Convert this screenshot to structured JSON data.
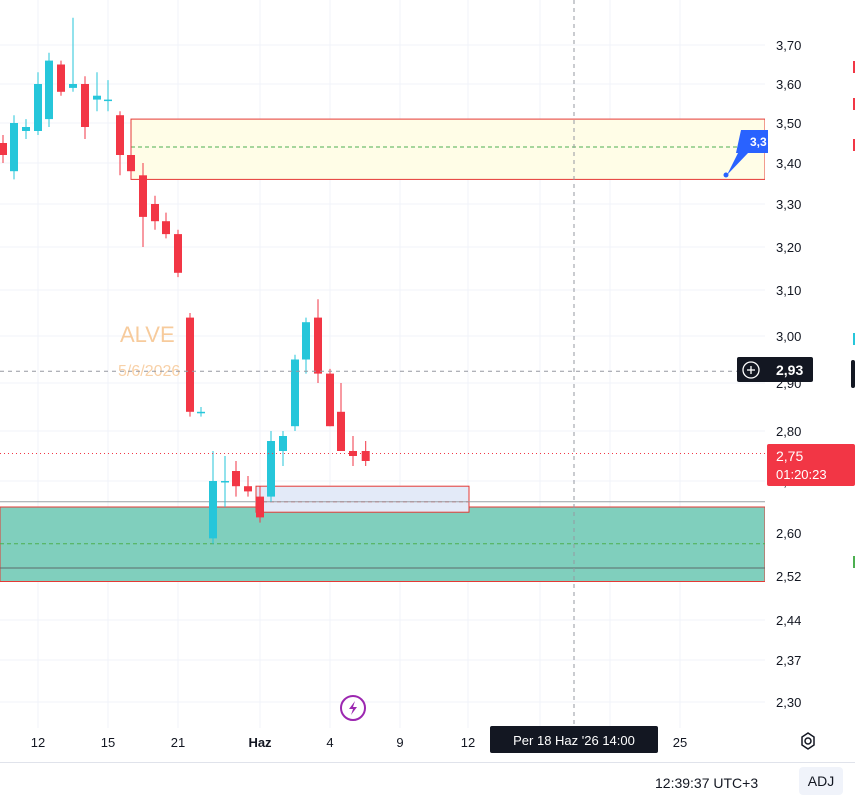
{
  "chart_data": {
    "type": "candlestick",
    "symbol_watermark": "ALVE",
    "date_watermark": "5/6/2026",
    "price_axis_ticks": [
      "3,70",
      "3,60",
      "3,50",
      "3,40",
      "3,30",
      "3,20",
      "3,10",
      "3,00",
      "2,90",
      "2,80",
      "2,70",
      "2,60",
      "2,52",
      "2,44",
      "2,37",
      "2,30"
    ],
    "time_axis_ticks": [
      "12",
      "15",
      "21",
      "Haz",
      "4",
      "9",
      "12",
      "25"
    ],
    "crosshair_date_label": "Per 18 Haz '26   14:00",
    "crosshair_price_label": "2,93",
    "last_price_label": "2,75",
    "countdown_label": "01:20:23",
    "alert_label": "3,3",
    "candles": [
      {
        "o": 3.45,
        "h": 3.47,
        "l": 3.4,
        "c": 3.42
      },
      {
        "o": 3.38,
        "h": 3.52,
        "l": 3.36,
        "c": 3.5
      },
      {
        "o": 3.48,
        "h": 3.51,
        "l": 3.46,
        "c": 3.49
      },
      {
        "o": 3.48,
        "h": 3.63,
        "l": 3.47,
        "c": 3.6
      },
      {
        "o": 3.51,
        "h": 3.68,
        "l": 3.49,
        "c": 3.66
      },
      {
        "o": 3.65,
        "h": 3.66,
        "l": 3.57,
        "c": 3.58
      },
      {
        "o": 3.59,
        "h": 3.77,
        "l": 3.58,
        "c": 3.6
      },
      {
        "o": 3.6,
        "h": 3.62,
        "l": 3.46,
        "c": 3.49
      },
      {
        "o": 3.56,
        "h": 3.63,
        "l": 3.53,
        "c": 3.57
      },
      {
        "o": 3.56,
        "h": 3.61,
        "l": 3.53,
        "c": 3.56
      },
      {
        "o": 3.52,
        "h": 3.53,
        "l": 3.37,
        "c": 3.42
      },
      {
        "o": 3.42,
        "h": 3.45,
        "l": 3.36,
        "c": 3.38
      },
      {
        "o": 3.37,
        "h": 3.4,
        "l": 3.2,
        "c": 3.27
      },
      {
        "o": 3.3,
        "h": 3.32,
        "l": 3.24,
        "c": 3.26
      },
      {
        "o": 3.26,
        "h": 3.28,
        "l": 3.22,
        "c": 3.23
      },
      {
        "o": 3.23,
        "h": 3.24,
        "l": 3.13,
        "c": 3.14
      },
      {
        "o": 3.04,
        "h": 3.05,
        "l": 2.83,
        "c": 2.84
      },
      {
        "o": 2.84,
        "h": 2.85,
        "l": 2.83,
        "c": 2.84
      },
      {
        "o": 2.59,
        "h": 2.76,
        "l": 2.58,
        "c": 2.7
      },
      {
        "o": 2.7,
        "h": 2.75,
        "l": 2.65,
        "c": 2.7
      },
      {
        "o": 2.72,
        "h": 2.74,
        "l": 2.67,
        "c": 2.69
      },
      {
        "o": 2.69,
        "h": 2.71,
        "l": 2.67,
        "c": 2.68
      },
      {
        "o": 2.67,
        "h": 2.69,
        "l": 2.62,
        "c": 2.63
      },
      {
        "o": 2.67,
        "h": 2.8,
        "l": 2.66,
        "c": 2.78
      },
      {
        "o": 2.76,
        "h": 2.8,
        "l": 2.73,
        "c": 2.79
      },
      {
        "o": 2.81,
        "h": 2.96,
        "l": 2.8,
        "c": 2.95
      },
      {
        "o": 2.95,
        "h": 3.04,
        "l": 2.92,
        "c": 3.03
      },
      {
        "o": 3.04,
        "h": 3.08,
        "l": 2.9,
        "c": 2.92
      },
      {
        "o": 2.92,
        "h": 2.93,
        "l": 2.81,
        "c": 2.81
      },
      {
        "o": 2.84,
        "h": 2.9,
        "l": 2.76,
        "c": 2.76
      },
      {
        "o": 2.76,
        "h": 2.79,
        "l": 2.73,
        "c": 2.75
      },
      {
        "o": 2.76,
        "h": 2.78,
        "l": 2.73,
        "c": 2.74
      }
    ],
    "zones": [
      {
        "name": "supply-zone",
        "top": 3.51,
        "bottom": 3.36,
        "fill": "#fffde7",
        "border": "#e53935",
        "mid": 3.44,
        "mid_color": "#4caf50"
      },
      {
        "name": "demand-zone",
        "top": 2.65,
        "bottom": 2.51,
        "fill": "#80cfbd",
        "border": "#e53935",
        "mid": 2.58,
        "mid_color": "#4caf50"
      },
      {
        "name": "small-zone",
        "top": 2.69,
        "bottom": 2.64,
        "fill": "#e3eaf8",
        "border": "#e53935",
        "mid": 2.66,
        "mid_color": "#e53935"
      }
    ],
    "crosshair_price": 2.925,
    "last_price": 2.755,
    "colors": {
      "up": "#26c6da",
      "down": "#f23645",
      "grid": "#f0f3fa",
      "axis_bg": "#ffffff",
      "crosshair": "#9598a1",
      "alert": "#2962ff"
    },
    "grid": true
  },
  "status_bar": {
    "clock": "12:39:37 UTC+3",
    "adj_label": "ADJ"
  },
  "icons": {
    "lightning": "lightning-icon",
    "settings": "settings-gear-icon",
    "plus": "plus-circle-icon"
  }
}
